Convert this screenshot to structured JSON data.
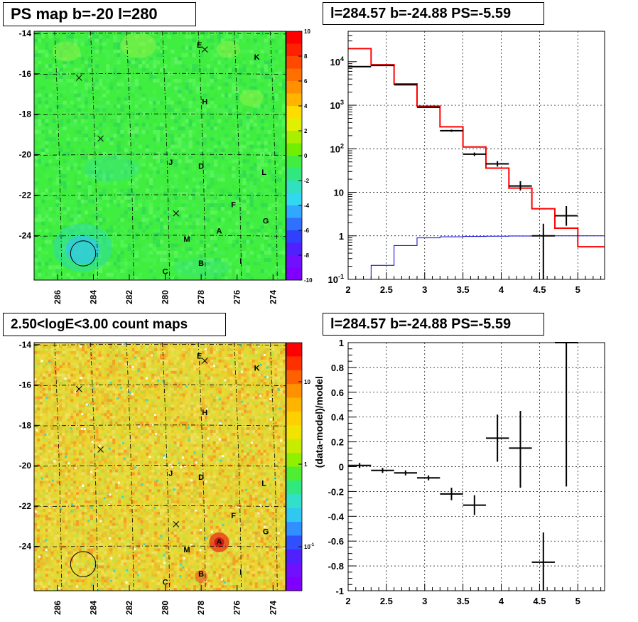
{
  "panels": {
    "top_left_title": "PS map b=-20 l=280",
    "top_right_title": "l=284.57 b=-24.88 PS=-5.59",
    "bottom_left_title": "2.50<logE<3.00 count maps",
    "bottom_right_title": "l=284.57 b=-24.88 PS=-5.59"
  },
  "colors": {
    "map_bg_ps": "#40ee40",
    "map_bg_counts": "#e8d832",
    "histogram_model": "#ff0000",
    "histogram_other": "#0000cc",
    "data_points": "#000000"
  },
  "chart_data": [
    {
      "type": "heatmap",
      "title": "PS map b=-20 l=280",
      "xlabel": "",
      "ylabel": "",
      "x_ticks": [
        "286",
        "284",
        "282",
        "280",
        "278",
        "276",
        "274"
      ],
      "y_ticks": [
        "-14",
        "-16",
        "-18",
        "-20",
        "-22",
        "-24"
      ],
      "colorbar_ticks": [
        "10",
        "8",
        "6",
        "4",
        "2",
        "0",
        "-2",
        "-4",
        "-6",
        "-8",
        "-10"
      ],
      "colorbar_range": [
        -10,
        10
      ],
      "source_labels": [
        {
          "label": "E",
          "l": 278.1,
          "b": -14.7
        },
        {
          "label": "K",
          "l": 274.9,
          "b": -15.3
        },
        {
          "label": "H",
          "l": 277.8,
          "b": -17.5
        },
        {
          "label": "J",
          "l": 279.7,
          "b": -20.5
        },
        {
          "label": "D",
          "l": 278.0,
          "b": -20.7
        },
        {
          "label": "L",
          "l": 274.5,
          "b": -21.0
        },
        {
          "label": "F",
          "l": 276.2,
          "b": -22.6
        },
        {
          "label": "G",
          "l": 274.4,
          "b": -23.4
        },
        {
          "label": "A",
          "l": 277.0,
          "b": -23.9
        },
        {
          "label": "M",
          "l": 278.8,
          "b": -24.3
        },
        {
          "label": "I",
          "l": 275.8,
          "b": -25.4
        },
        {
          "label": "B",
          "l": 278.0,
          "b": -25.5
        },
        {
          "label": "C",
          "l": 280.0,
          "b": -25.9
        }
      ],
      "crosses": [
        {
          "l": 277.8,
          "b": -14.8
        },
        {
          "l": 284.8,
          "b": -16.2
        },
        {
          "l": 283.6,
          "b": -19.2
        },
        {
          "l": 279.4,
          "b": -22.9
        }
      ],
      "circle": {
        "l": 284.57,
        "b": -24.88,
        "radius_deg": 0.7
      }
    },
    {
      "type": "line",
      "title": "l=284.57 b=-24.88 PS=-5.59",
      "xlabel": "",
      "ylabel": "",
      "log_y": true,
      "xlim": [
        2,
        5.35
      ],
      "ylim": [
        0.1,
        50000
      ],
      "x_ticks": [
        "2",
        "2.5",
        "3",
        "3.5",
        "4",
        "4.5",
        "5"
      ],
      "y_ticks": [
        "10^-1",
        "1",
        "10",
        "10^2",
        "10^3",
        "10^4"
      ],
      "grid": true,
      "series": [
        {
          "type": "step",
          "color": "#ff0000",
          "edges": [
            2,
            2.3,
            2.6,
            2.9,
            3.2,
            3.5,
            3.8,
            4.1,
            4.4,
            4.7,
            5.0,
            5.35
          ],
          "values": [
            20000,
            8500,
            3100,
            950,
            320,
            110,
            36,
            12.5,
            4.2,
            1.5,
            0.56
          ]
        },
        {
          "type": "step",
          "color": "#0000cc",
          "edges": [
            2,
            2.3,
            2.6,
            2.9,
            3.2,
            3.5,
            3.8,
            4.1,
            4.4,
            4.7,
            5.0,
            5.35
          ],
          "values": [
            0.1,
            0.21,
            0.6,
            0.9,
            0.95,
            0.97,
            0.98,
            0.99,
            1.0,
            1.0,
            1.0
          ]
        },
        {
          "type": "errorbar",
          "color": "#000000",
          "x": [
            2.15,
            2.45,
            2.75,
            3.05,
            3.35,
            3.65,
            3.95,
            4.25,
            4.55,
            4.85
          ],
          "xerr": 0.15,
          "y": [
            7700,
            8200,
            2950,
            900,
            260,
            75,
            45,
            14,
            1.0,
            2.9
          ],
          "y_low": [
            7600,
            8050,
            2900,
            880,
            245,
            68,
            39,
            11,
            0.1,
            1.7
          ],
          "y_high": [
            7800,
            8350,
            3000,
            920,
            275,
            82,
            52,
            18,
            1.9,
            4.8
          ]
        }
      ]
    },
    {
      "type": "heatmap",
      "title": "2.50<logE<3.00 count maps",
      "xlabel": "",
      "ylabel": "",
      "x_ticks": [
        "286",
        "284",
        "282",
        "280",
        "278",
        "276",
        "274"
      ],
      "y_ticks": [
        "-14",
        "-16",
        "-18",
        "-20",
        "-22",
        "-24"
      ],
      "colorbar_ticks": [
        "10",
        "1",
        "10^-1"
      ],
      "colorbar_log": true,
      "source_labels": [
        {
          "label": "E",
          "l": 278.1,
          "b": -14.7
        },
        {
          "label": "K",
          "l": 274.9,
          "b": -15.3
        },
        {
          "label": "H",
          "l": 277.8,
          "b": -17.5
        },
        {
          "label": "J",
          "l": 279.7,
          "b": -20.5
        },
        {
          "label": "D",
          "l": 278.0,
          "b": -20.7
        },
        {
          "label": "L",
          "l": 274.5,
          "b": -21.0
        },
        {
          "label": "F",
          "l": 276.2,
          "b": -22.6
        },
        {
          "label": "G",
          "l": 274.4,
          "b": -23.4
        },
        {
          "label": "A",
          "l": 277.0,
          "b": -23.9
        },
        {
          "label": "M",
          "l": 278.8,
          "b": -24.3
        },
        {
          "label": "I",
          "l": 275.8,
          "b": -25.4
        },
        {
          "label": "B",
          "l": 278.0,
          "b": -25.5
        },
        {
          "label": "C",
          "l": 280.0,
          "b": -25.9
        }
      ],
      "crosses": [
        {
          "l": 277.8,
          "b": -14.8
        },
        {
          "l": 284.8,
          "b": -16.2
        },
        {
          "l": 283.6,
          "b": -19.2
        },
        {
          "l": 279.4,
          "b": -22.9
        }
      ],
      "circle": {
        "l": 284.57,
        "b": -24.88,
        "radius_deg": 0.7
      }
    },
    {
      "type": "scatter",
      "title": "l=284.57 b=-24.88 PS=-5.59",
      "xlabel": "",
      "ylabel": "(data-model)/model",
      "xlim": [
        2,
        5.35
      ],
      "ylim": [
        -1,
        1
      ],
      "x_ticks": [
        "2",
        "2.5",
        "3",
        "3.5",
        "4",
        "4.5",
        "5"
      ],
      "y_ticks": [
        "-1",
        "-0.8",
        "-0.6",
        "-0.4",
        "-0.2",
        "0",
        "0.2",
        "0.4",
        "0.6",
        "0.8",
        "1"
      ],
      "grid": true,
      "series": [
        {
          "type": "errorbar",
          "color": "#000000",
          "x": [
            2.15,
            2.45,
            2.75,
            3.05,
            3.35,
            3.65,
            3.95,
            4.25,
            4.55,
            4.85
          ],
          "xerr": 0.15,
          "y": [
            0.01,
            -0.03,
            -0.05,
            -0.09,
            -0.22,
            -0.31,
            0.23,
            0.15,
            -0.77,
            1.0
          ],
          "y_low": [
            -0.01,
            -0.05,
            -0.07,
            -0.11,
            -0.27,
            -0.39,
            0.04,
            -0.17,
            -1.0,
            -0.16
          ],
          "y_high": [
            0.03,
            -0.01,
            -0.03,
            -0.07,
            -0.17,
            -0.23,
            0.42,
            0.45,
            -0.53,
            1.0
          ]
        }
      ]
    }
  ]
}
